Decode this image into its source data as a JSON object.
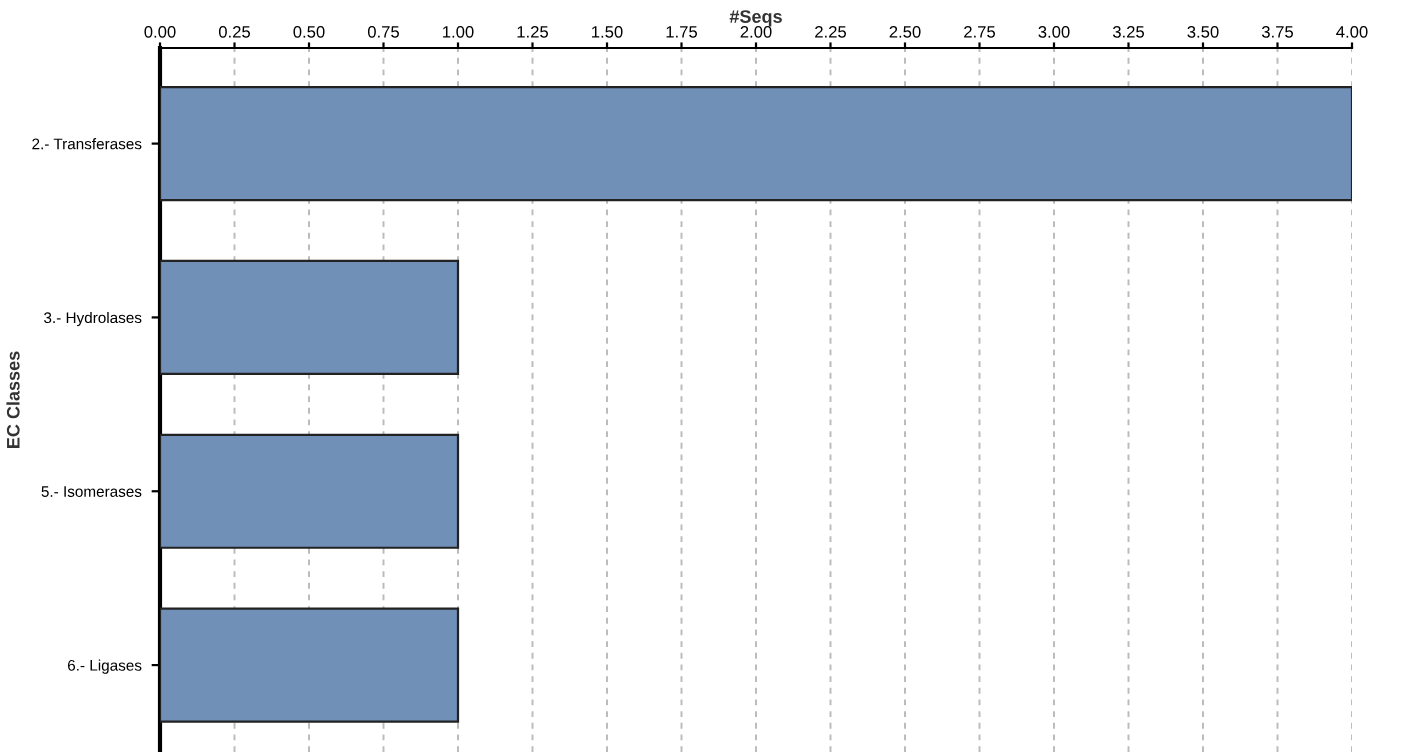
{
  "chart_data": {
    "type": "bar",
    "orientation": "horizontal",
    "xlabel": "#Seqs",
    "ylabel": "EC Classes",
    "categories": [
      "2.- Transferases",
      "3.- Hydrolases",
      "5.- Isomerases",
      "6.- Ligases"
    ],
    "values": [
      4,
      1,
      1,
      1
    ],
    "color": "#7090b8",
    "xlim": [
      0,
      4.0
    ],
    "xticks": [
      {
        "value": 0,
        "label": "0.00"
      },
      {
        "value": 0.25,
        "label": "0.25"
      },
      {
        "value": 0.5,
        "label": "0.50"
      },
      {
        "value": 0.75,
        "label": "0.75"
      },
      {
        "value": 1,
        "label": "1.00"
      },
      {
        "value": 1.25,
        "label": "1.25"
      },
      {
        "value": 1.5,
        "label": "1.50"
      },
      {
        "value": 1.75,
        "label": "1.75"
      },
      {
        "value": 2,
        "label": "2.00"
      },
      {
        "value": 2.25,
        "label": "2.25"
      },
      {
        "value": 2.5,
        "label": "2.50"
      },
      {
        "value": 2.75,
        "label": "2.75"
      },
      {
        "value": 3,
        "label": "3.00"
      },
      {
        "value": 3.25,
        "label": "3.25"
      },
      {
        "value": 3.5,
        "label": "3.50"
      },
      {
        "value": 3.75,
        "label": "3.75"
      },
      {
        "value": 4,
        "label": "4.00"
      }
    ],
    "grid": "x"
  }
}
